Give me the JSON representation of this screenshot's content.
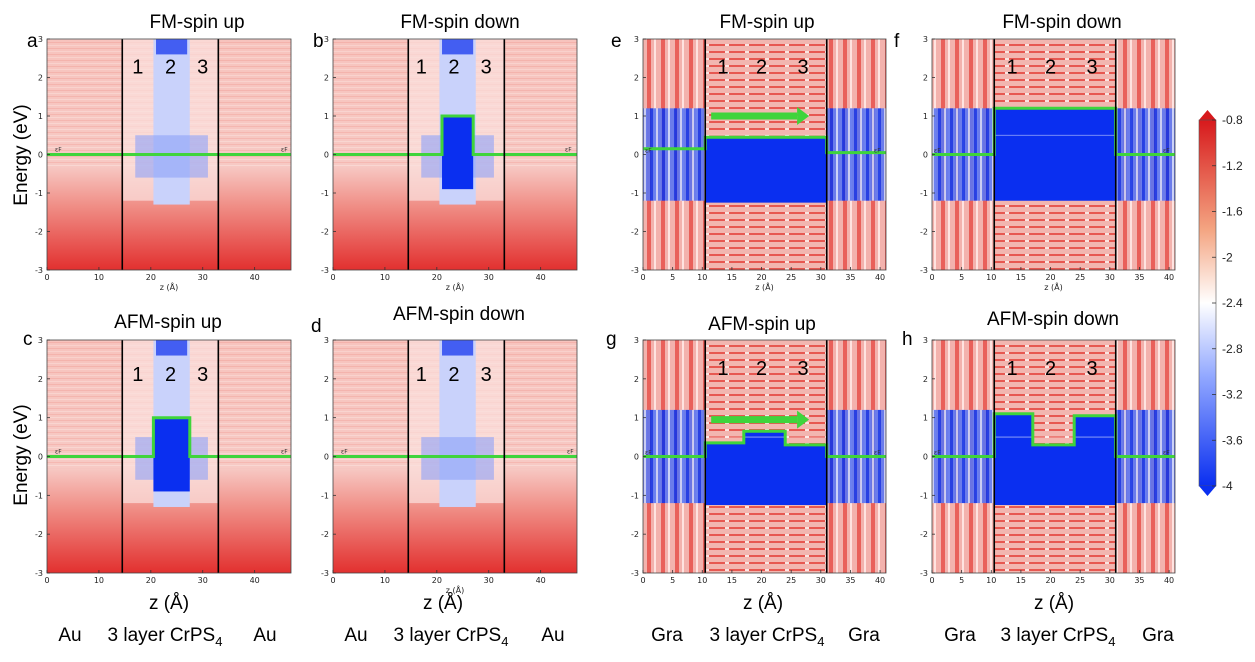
{
  "figure": {
    "ylabel": "Energy (eV)",
    "xlabel": "z (Å)",
    "small_xlabel": "z (Å)",
    "fermi_label": "εF",
    "layer_labels": [
      "1",
      "2",
      "3"
    ],
    "colors": {
      "red": "#e0282a",
      "blue": "#0a2ff0",
      "green": "#3fd43c",
      "white": "#ffffff"
    }
  },
  "panels": [
    {
      "letter": "a",
      "title": "FM-spin up"
    },
    {
      "letter": "b",
      "title": "FM-spin down"
    },
    {
      "letter": "c",
      "title": "AFM-spin up"
    },
    {
      "letter": "d",
      "title": "AFM-spin down"
    },
    {
      "letter": "e",
      "title": "FM-spin up"
    },
    {
      "letter": "f",
      "title": "FM-spin down"
    },
    {
      "letter": "g",
      "title": "AFM-spin up"
    },
    {
      "letter": "h",
      "title": "AFM-spin down"
    }
  ],
  "column_labels": [
    {
      "left": "Au",
      "middle": "3 layer CrPS",
      "sub": "4",
      "right": "Au"
    },
    {
      "left": "Au",
      "middle": "3 layer CrPS",
      "sub": "4",
      "right": "Au"
    },
    {
      "left": "Gra",
      "middle": "3 layer CrPS",
      "sub": "4",
      "right": "Gra"
    },
    {
      "left": "Gra",
      "middle": "3 layer CrPS",
      "sub": "4",
      "right": "Gra"
    }
  ],
  "chart_data": {
    "type": "heatmap",
    "y_axis": {
      "label": "Energy (eV)",
      "range": [
        -3,
        3
      ],
      "tick_labels": [
        "3",
        "2",
        "1",
        "0",
        "-1",
        "-2",
        "-3"
      ]
    },
    "x_axis_au": {
      "label": "z (Å)",
      "range": [
        0,
        47
      ],
      "tick_labels": [
        "0",
        "10",
        "20",
        "30",
        "40"
      ]
    },
    "x_axis_gra": {
      "label": "z (Å)",
      "range": [
        0,
        41
      ],
      "tick_labels": [
        "0",
        "5",
        "10",
        "15",
        "20",
        "25",
        "30",
        "35",
        "40"
      ]
    },
    "colorbar": {
      "range": [
        -4,
        -0.8
      ],
      "tick_labels": [
        "-0.8",
        "-1.2",
        "-1.6",
        "-2",
        "-2.4",
        "-2.8",
        "-3.2",
        "-3.6",
        "-4"
      ]
    },
    "interfaces_A": {
      "Au": [
        14.5,
        33
      ],
      "Gra": [
        10.5,
        31
      ]
    },
    "potential_step_profiles_eV": {
      "a": [
        [
          0,
          0
        ],
        [
          47,
          0
        ]
      ],
      "b": [
        [
          0,
          0
        ],
        [
          21,
          0
        ],
        [
          21,
          1
        ],
        [
          27,
          1
        ],
        [
          27,
          0
        ],
        [
          47,
          0
        ]
      ],
      "c": [
        [
          0,
          0
        ],
        [
          20.5,
          0
        ],
        [
          20.5,
          1
        ],
        [
          27.5,
          1
        ],
        [
          27.5,
          0
        ],
        [
          47,
          0
        ]
      ],
      "d": [
        [
          0,
          0
        ],
        [
          47,
          0
        ]
      ],
      "e": [
        [
          0,
          0.15
        ],
        [
          10.5,
          0.15
        ],
        [
          10.5,
          0.45
        ],
        [
          31,
          0.45
        ],
        [
          31,
          0.05
        ],
        [
          41,
          0.05
        ]
      ],
      "f": [
        [
          0,
          0
        ],
        [
          10.5,
          0
        ],
        [
          10.5,
          1.2
        ],
        [
          31,
          1.2
        ],
        [
          31,
          0
        ],
        [
          41,
          0
        ]
      ],
      "g": [
        [
          0,
          0
        ],
        [
          10.5,
          0
        ],
        [
          10.5,
          0.35
        ],
        [
          17,
          0.35
        ],
        [
          17,
          0.65
        ],
        [
          24,
          0.65
        ],
        [
          24,
          0.3
        ],
        [
          31,
          0.3
        ],
        [
          31,
          0
        ],
        [
          41,
          0
        ]
      ],
      "h": [
        [
          0,
          0
        ],
        [
          10.5,
          0
        ],
        [
          10.5,
          1.1
        ],
        [
          17,
          1.1
        ],
        [
          17,
          0.3
        ],
        [
          24,
          0.3
        ],
        [
          24,
          1.05
        ],
        [
          31,
          1.05
        ],
        [
          31,
          0
        ],
        [
          41,
          0
        ]
      ]
    },
    "arrows": [
      "e",
      "g"
    ]
  }
}
